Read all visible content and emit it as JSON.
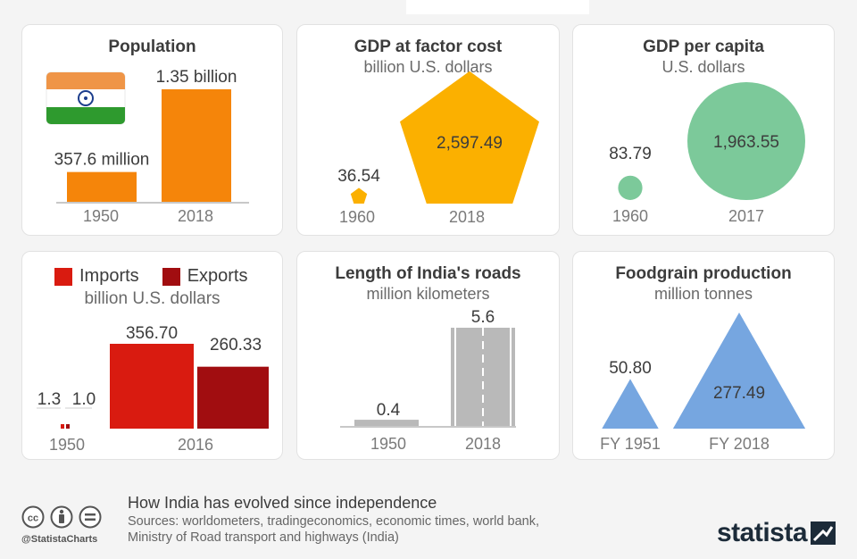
{
  "footer": {
    "title": "How India has evolved since independence",
    "sources": "Sources: worldometers, tradingeconomics, economic times, world bank, Ministry of Road transport and highways (India)",
    "handle": "@StatistaCharts",
    "brand": "statista"
  },
  "icons": [
    "cc-icon",
    "attribution-icon",
    "no-derivatives-icon",
    "india-flag-icon",
    "statista-logo-icon"
  ],
  "colors": {
    "population": "#f5850a",
    "gdp": "#fbb000",
    "gdp_per_capita": "#7cc99a",
    "imports": "#d91b10",
    "exports": "#a10d10",
    "roads": "#b9b9b9",
    "foodgrain": "#76a6e0"
  },
  "chart_data": [
    {
      "type": "bar",
      "title": "Population",
      "subtitle": "",
      "categories": [
        "1950",
        "2018"
      ],
      "values": [
        357.6,
        1350
      ],
      "unit": "million",
      "data_labels": [
        "357.6 million",
        "1.35 billion"
      ]
    },
    {
      "type": "pentagon",
      "title": "GDP at factor cost",
      "subtitle": "billion U.S. dollars",
      "categories": [
        "1960",
        "2018"
      ],
      "values": [
        36.54,
        2597.49
      ],
      "data_labels": [
        "36.54",
        "2,597.49"
      ]
    },
    {
      "type": "bubble",
      "title": "GDP per capita",
      "subtitle": "U.S. dollars",
      "categories": [
        "1960",
        "2017"
      ],
      "values": [
        83.79,
        1963.55
      ],
      "data_labels": [
        "83.79",
        "1,963.55"
      ]
    },
    {
      "type": "bar",
      "title": "",
      "subtitle": "billion U.S. dollars",
      "legend": [
        "Imports",
        "Exports"
      ],
      "categories": [
        "1950",
        "2016"
      ],
      "series": [
        {
          "name": "Imports",
          "values": [
            1.3,
            356.7
          ],
          "data_labels": [
            "1.3",
            "356.70"
          ]
        },
        {
          "name": "Exports",
          "values": [
            1.0,
            260.33
          ],
          "data_labels": [
            "1.0",
            "260.33"
          ]
        }
      ]
    },
    {
      "type": "bar",
      "title": "Length of India's roads",
      "subtitle": "million kilometers",
      "categories": [
        "1950",
        "2018"
      ],
      "values": [
        0.4,
        5.6
      ],
      "data_labels": [
        "0.4",
        "5.6"
      ]
    },
    {
      "type": "triangle",
      "title": "Foodgrain production",
      "subtitle": "million tonnes",
      "categories": [
        "FY 1951",
        "FY 2018"
      ],
      "values": [
        50.8,
        277.49
      ],
      "data_labels": [
        "50.80",
        "277.49"
      ]
    }
  ]
}
